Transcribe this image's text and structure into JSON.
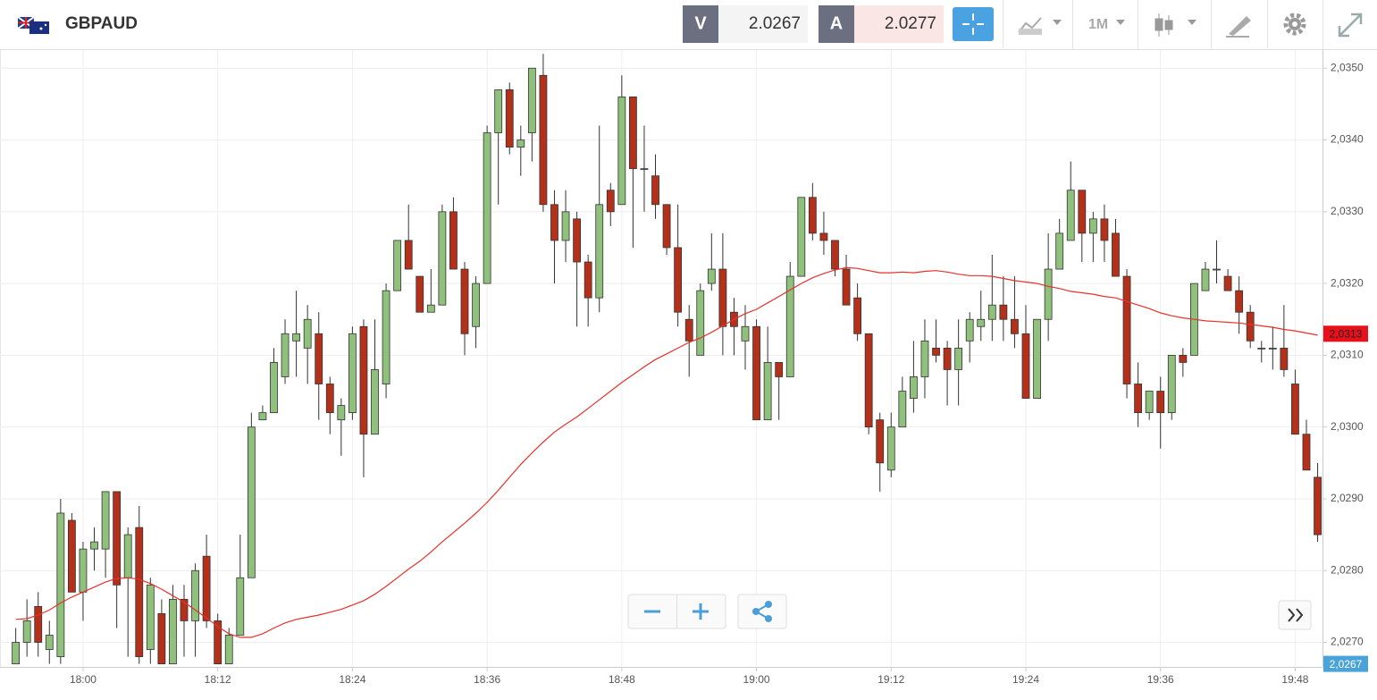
{
  "toolbar": {
    "symbol": "GBPAUD",
    "bid_label": "V",
    "bid": "2.0267",
    "ask_label": "A",
    "ask": "2.0277",
    "timeframe": "1M"
  },
  "chart_data": {
    "type": "candlestick",
    "categories": [
      null,
      null,
      null,
      null,
      null,
      null,
      "18:00",
      null,
      null,
      null,
      null,
      null,
      null,
      null,
      null,
      null,
      null,
      null,
      "18:12",
      null,
      null,
      null,
      null,
      null,
      null,
      null,
      null,
      null,
      null,
      null,
      "18:24",
      null,
      null,
      null,
      null,
      null,
      null,
      null,
      null,
      null,
      null,
      null,
      "18:36",
      null,
      null,
      null,
      null,
      null,
      null,
      null,
      null,
      null,
      null,
      null,
      "18:48",
      null,
      null,
      null,
      null,
      null,
      null,
      null,
      null,
      null,
      null,
      null,
      "19:00",
      null,
      null,
      null,
      null,
      null,
      null,
      null,
      null,
      null,
      null,
      null,
      "19:12",
      null,
      null,
      null,
      null,
      null,
      null,
      null,
      null,
      null,
      null,
      null,
      "19:24",
      null,
      null,
      null,
      null,
      null,
      null,
      null,
      null,
      null,
      null,
      null,
      "19:36",
      null,
      null,
      null,
      null,
      null,
      null,
      null,
      null,
      null,
      null,
      null,
      "19:48",
      null,
      null
    ],
    "open": [
      2.0267,
      2.027,
      2.0275,
      2.0269,
      2.0268,
      2.0287,
      2.0277,
      2.0283,
      2.0283,
      2.0291,
      2.0279,
      2.0286,
      2.0269,
      2.0274,
      2.0267,
      2.0276,
      2.0273,
      2.0282,
      2.0273,
      2.0267,
      2.0271,
      2.0279,
      2.0301,
      2.0302,
      2.0307,
      2.0312,
      2.0311,
      2.0313,
      2.0306,
      2.0301,
      2.0302,
      2.0314,
      2.0299,
      2.0306,
      2.0319,
      2.0326,
      2.0321,
      2.0316,
      2.0317,
      2.033,
      2.0322,
      2.0314,
      2.032,
      2.0341,
      2.0347,
      2.0339,
      2.0341,
      2.0349,
      2.0331,
      2.0326,
      2.0329,
      2.0323,
      2.0318,
      2.0333,
      2.0331,
      2.0346,
      2.0336,
      2.0335,
      2.0331,
      2.0325,
      2.0315,
      2.031,
      2.032,
      2.0322,
      2.0316,
      2.0312,
      2.0314,
      2.0301,
      2.0309,
      2.0307,
      2.0321,
      2.0332,
      2.0327,
      2.0326,
      2.0322,
      2.0318,
      2.0313,
      2.0301,
      2.0294,
      2.03,
      2.0304,
      2.0307,
      2.0311,
      2.0311,
      2.0308,
      2.0312,
      2.0314,
      2.0315,
      2.0317,
      2.0315,
      2.0313,
      2.0304,
      2.0315,
      2.0322,
      2.0326,
      2.0333,
      2.0327,
      2.0329,
      2.0327,
      2.0321,
      2.0306,
      2.0302,
      2.0305,
      2.0302,
      2.031,
      2.031,
      2.0319,
      2.0322,
      2.0321,
      2.0319,
      2.0316,
      2.0311,
      2.0311,
      2.0311,
      2.0306,
      2.0299,
      2.0293
    ],
    "high": [
      2.0272,
      2.0276,
      2.0277,
      2.0273,
      2.029,
      2.0288,
      2.0284,
      2.0286,
      2.0291,
      2.0291,
      2.0286,
      2.0289,
      2.0279,
      2.0276,
      2.0278,
      2.0278,
      2.0281,
      2.0285,
      2.0274,
      2.0272,
      2.0285,
      2.0302,
      2.0303,
      2.0311,
      2.0315,
      2.0319,
      2.0317,
      2.0316,
      2.0307,
      2.0304,
      2.0314,
      2.0315,
      2.0315,
      2.032,
      2.0326,
      2.0331,
      2.0321,
      2.0322,
      2.0331,
      2.0332,
      2.0323,
      2.0321,
      2.0342,
      2.0347,
      2.0348,
      2.0342,
      2.035,
      2.0352,
      2.0333,
      2.0333,
      2.033,
      2.0324,
      2.0342,
      2.0334,
      2.0349,
      2.0346,
      2.0342,
      2.0338,
      2.0331,
      2.0331,
      2.0317,
      2.032,
      2.0327,
      2.0327,
      2.0318,
      2.0317,
      2.0315,
      2.0314,
      2.0309,
      2.0323,
      2.0332,
      2.0334,
      2.033,
      2.0326,
      2.0324,
      2.032,
      2.0313,
      2.0302,
      2.0302,
      2.0307,
      2.0312,
      2.0315,
      2.0315,
      2.0312,
      2.0315,
      2.0316,
      2.0319,
      2.0324,
      2.0321,
      2.0321,
      2.0317,
      2.0315,
      2.0327,
      2.0329,
      2.0337,
      2.0333,
      2.033,
      2.0331,
      2.0329,
      2.0322,
      2.0309,
      2.0305,
      2.0307,
      2.031,
      2.0311,
      2.032,
      2.0323,
      2.0326,
      2.0322,
      2.0321,
      2.0317,
      2.0312,
      2.0314,
      2.0317,
      2.0308,
      2.0301,
      2.0295
    ],
    "low": [
      2.0267,
      2.0268,
      2.0268,
      2.0267,
      2.0267,
      2.0277,
      2.0273,
      2.028,
      2.0279,
      2.0272,
      2.0268,
      2.0267,
      2.0267,
      2.0267,
      2.0267,
      2.0268,
      2.0268,
      2.0272,
      2.0267,
      2.0267,
      2.0271,
      2.0279,
      2.0301,
      2.0302,
      2.0306,
      2.0307,
      2.0306,
      2.0301,
      2.0299,
      2.0296,
      2.0301,
      2.0293,
      2.0299,
      2.0304,
      2.0319,
      2.0322,
      2.0316,
      2.0316,
      2.0317,
      2.0322,
      2.031,
      2.0311,
      2.032,
      2.0331,
      2.0338,
      2.0335,
      2.0337,
      2.033,
      2.032,
      2.0323,
      2.0314,
      2.0314,
      2.0316,
      2.0328,
      2.0331,
      2.0325,
      2.033,
      2.0329,
      2.0324,
      2.0314,
      2.0307,
      2.031,
      2.0319,
      2.031,
      2.031,
      2.0308,
      2.0301,
      2.0301,
      2.0301,
      2.0307,
      2.0321,
      2.0326,
      2.0324,
      2.0321,
      2.0317,
      2.0312,
      2.0299,
      2.0291,
      2.0293,
      2.03,
      2.0302,
      2.0304,
      2.0309,
      2.0303,
      2.0303,
      2.0309,
      2.0312,
      2.0312,
      2.0312,
      2.0311,
      2.0304,
      2.0304,
      2.0312,
      2.0322,
      2.0326,
      2.0323,
      2.0323,
      2.0323,
      2.0321,
      2.0304,
      2.03,
      2.0301,
      2.0297,
      2.0301,
      2.0307,
      2.031,
      2.0319,
      2.032,
      2.0319,
      2.0313,
      2.0311,
      2.0309,
      2.0308,
      2.0307,
      2.0299,
      2.0294,
      2.0284
    ],
    "close": [
      2.027,
      2.0273,
      2.027,
      2.0271,
      2.0288,
      2.0277,
      2.0283,
      2.0284,
      2.0291,
      2.0278,
      2.0285,
      2.0268,
      2.0278,
      2.0267,
      2.0276,
      2.0273,
      2.028,
      2.0273,
      2.0267,
      2.0271,
      2.0279,
      2.03,
      2.0302,
      2.0309,
      2.0313,
      2.0313,
      2.0315,
      2.0306,
      2.0302,
      2.0303,
      2.0313,
      2.0299,
      2.0308,
      2.0319,
      2.0326,
      2.0322,
      2.0316,
      2.0317,
      2.033,
      2.0322,
      2.0313,
      2.032,
      2.0341,
      2.0347,
      2.0339,
      2.034,
      2.035,
      2.0331,
      2.0326,
      2.033,
      2.0323,
      2.0318,
      2.0331,
      2.033,
      2.0346,
      2.0336,
      2.0336,
      2.0331,
      2.0325,
      2.0316,
      2.0312,
      2.0319,
      2.0322,
      2.0314,
      2.0314,
      2.0314,
      2.0301,
      2.0309,
      2.0307,
      2.0321,
      2.0332,
      2.0327,
      2.0326,
      2.0322,
      2.0317,
      2.0313,
      2.03,
      2.0295,
      2.03,
      2.0305,
      2.0307,
      2.0312,
      2.031,
      2.0308,
      2.0311,
      2.0315,
      2.0315,
      2.0317,
      2.0315,
      2.0313,
      2.0304,
      2.0315,
      2.0322,
      2.0327,
      2.0333,
      2.0327,
      2.0329,
      2.0326,
      2.0321,
      2.0306,
      2.0302,
      2.0305,
      2.0302,
      2.031,
      2.0309,
      2.032,
      2.0322,
      2.0322,
      2.0319,
      2.0316,
      2.0312,
      2.0311,
      2.0311,
      2.0308,
      2.0299,
      2.0294,
      2.0285
    ],
    "up_color": "#8fc07c",
    "down_color": "#b3301b",
    "ma": {
      "color": "#e8312b",
      "values": [
        2.02732,
        2.02733,
        2.02738,
        2.02745,
        2.02755,
        2.02763,
        2.0277,
        2.02777,
        2.02784,
        2.02789,
        2.0279,
        2.02788,
        2.02782,
        2.02774,
        2.02765,
        2.02756,
        2.02745,
        2.02734,
        2.02722,
        2.02712,
        2.02707,
        2.02707,
        2.02712,
        2.0272,
        2.02727,
        2.02732,
        2.02735,
        2.02738,
        2.02742,
        2.02746,
        2.02752,
        2.02758,
        2.02767,
        2.02778,
        2.0279,
        2.02802,
        2.02813,
        2.02826,
        2.0284,
        2.02853,
        2.02866,
        2.0288,
        2.02895,
        2.02912,
        2.0293,
        2.02948,
        2.02964,
        2.02979,
        2.02993,
        2.03004,
        2.03014,
        2.03026,
        2.03038,
        2.0305,
        2.03062,
        2.03073,
        2.03084,
        2.03094,
        2.03102,
        2.0311,
        2.03118,
        2.03124,
        2.03132,
        2.03141,
        2.0315,
        2.03158,
        2.03164,
        2.03173,
        2.03182,
        2.03191,
        2.032,
        2.03208,
        2.03214,
        2.03219,
        2.03222,
        2.03221,
        2.03218,
        2.03215,
        2.03215,
        2.03216,
        2.03215,
        2.03217,
        2.03218,
        2.03216,
        2.03213,
        2.03211,
        2.03211,
        2.0321,
        2.03207,
        2.03204,
        2.03202,
        2.032,
        2.03196,
        2.03193,
        2.03189,
        2.03187,
        2.03185,
        2.03182,
        2.0318,
        2.03175,
        2.0317,
        2.03165,
        2.03159,
        2.03155,
        2.03152,
        2.0315,
        2.03148,
        2.03147,
        2.03146,
        2.03145,
        2.03143,
        2.03141,
        2.03139,
        2.03136,
        2.03134,
        2.03131,
        2.03128
      ]
    },
    "ylim": [
      2.02667,
      2.03524
    ],
    "yticks": [
      {
        "value": 2.027,
        "label": "2,0270"
      },
      {
        "value": 2.028,
        "label": "2,0280"
      },
      {
        "value": 2.029,
        "label": "2,0290"
      },
      {
        "value": 2.03,
        "label": "2,0300"
      },
      {
        "value": 2.031,
        "label": "2,0310"
      },
      {
        "value": 2.032,
        "label": "2,0320"
      },
      {
        "value": 2.033,
        "label": "2,0330"
      },
      {
        "value": 2.034,
        "label": "2,0340"
      },
      {
        "value": 2.035,
        "label": "2,0350"
      }
    ],
    "price_labels": [
      {
        "value": 2.0313,
        "label": "2,0313",
        "color": "#e8101a",
        "text_color": "#222"
      },
      {
        "value": 2.0267,
        "label": "2,0267",
        "color": "#4aa3d8",
        "text_color": "#fff"
      }
    ],
    "grid": true
  }
}
